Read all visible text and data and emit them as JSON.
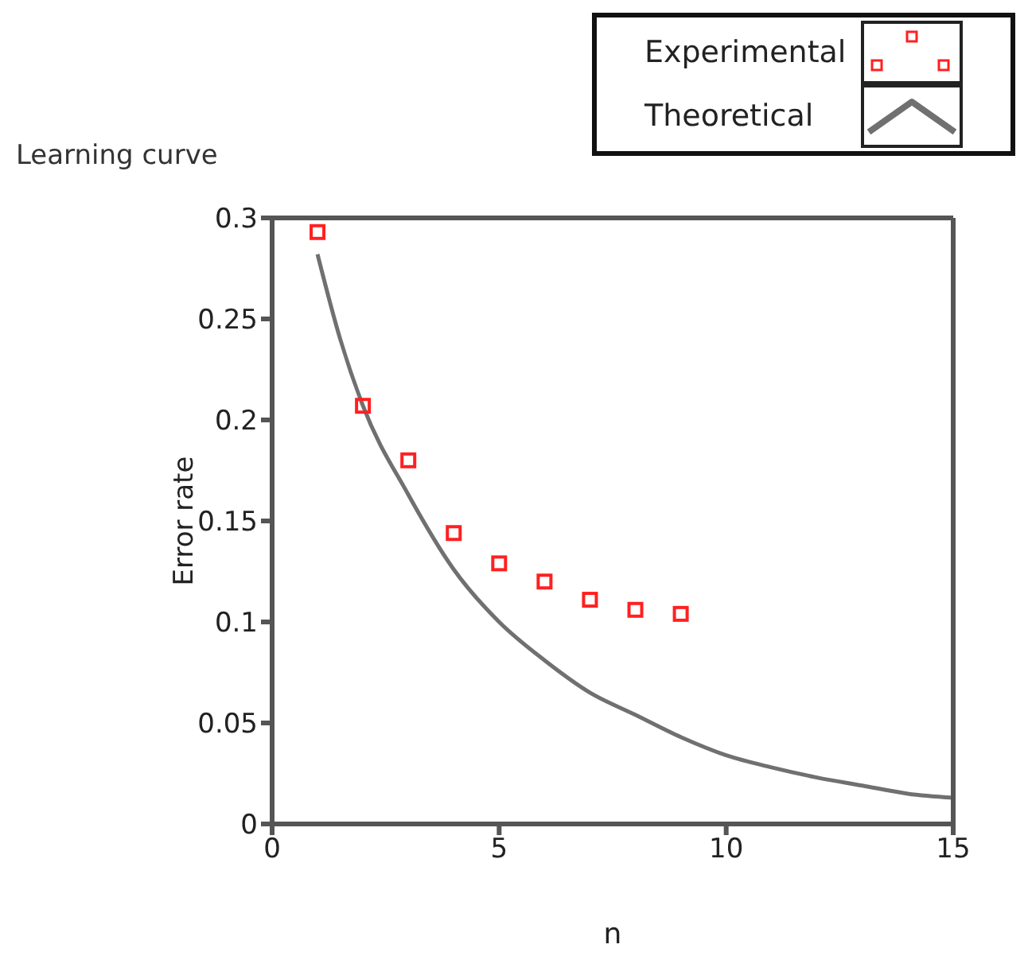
{
  "chart_data": {
    "type": "line",
    "title": "Learning curve",
    "xlabel": "n",
    "ylabel": "Error rate",
    "xlim": [
      0,
      15
    ],
    "xticks": [
      0,
      5,
      10,
      15
    ],
    "ylim": [
      0,
      0.3
    ],
    "yticks": [
      0,
      0.05,
      0.1,
      0.15,
      0.2,
      0.25,
      0.3
    ],
    "legend": "top right",
    "series": [
      {
        "name": "Experimental",
        "type": "scatter",
        "marker": "square",
        "color": "#ff2020",
        "x": [
          1,
          2,
          3,
          4,
          5,
          6,
          7,
          8,
          9
        ],
        "values": [
          0.293,
          0.207,
          0.18,
          0.144,
          0.129,
          0.12,
          0.111,
          0.106,
          0.104
        ]
      },
      {
        "name": "Theoretical",
        "marker": "none",
        "line_style": "solid",
        "color": "#707070",
        "x": [
          1,
          1.5,
          2,
          3,
          4,
          5,
          6,
          7,
          8,
          9,
          10,
          11,
          12,
          13,
          14,
          15
        ],
        "values": [
          0.282,
          0.24,
          0.207,
          0.163,
          0.126,
          0.1,
          0.081,
          0.065,
          0.054,
          0.043,
          0.034,
          0.028,
          0.023,
          0.019,
          0.015,
          0.013
        ]
      }
    ]
  }
}
